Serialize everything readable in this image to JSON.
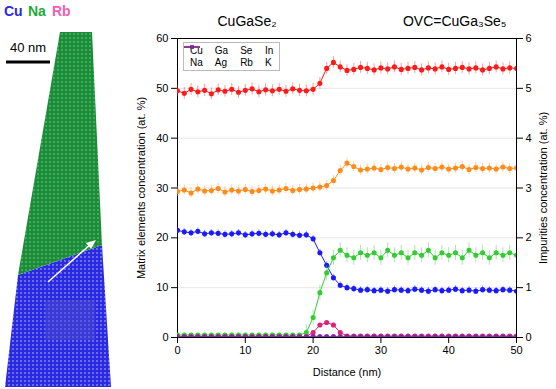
{
  "chart_data": {
    "type": "line",
    "annotations": [
      "CuGaSe₂",
      "OVC=CuGa₃Se₅"
    ],
    "x_label": "Distance (nm)",
    "y_label": "Matrix elements concentration (at. %)",
    "y2_label": "Impurities concentration (at. %)",
    "x": [
      0,
      1,
      2,
      3,
      4,
      5,
      6,
      7,
      8,
      9,
      10,
      11,
      12,
      13,
      14,
      15,
      16,
      17,
      18,
      19,
      20,
      21,
      22,
      23,
      24,
      25,
      26,
      27,
      28,
      29,
      30,
      31,
      32,
      33,
      34,
      35,
      36,
      37,
      38,
      39,
      40,
      41,
      42,
      43,
      44,
      45,
      46,
      47,
      48,
      49,
      50
    ],
    "xlim": [
      0,
      50
    ],
    "xticks": [
      0,
      10,
      20,
      30,
      40,
      50
    ],
    "ylim": [
      0,
      60
    ],
    "yticks": [
      0,
      10,
      20,
      30,
      40,
      50,
      60
    ],
    "y2lim": [
      0,
      6
    ],
    "y2ticks": [
      0,
      1,
      2,
      3,
      4,
      5,
      6
    ],
    "grid": true,
    "legend": "top-left",
    "series": [
      {
        "name": "Cu",
        "color": "#1a1aff",
        "marker": "circle",
        "values": [
          21.5,
          21.2,
          21.0,
          21.3,
          20.8,
          21.0,
          20.9,
          20.7,
          20.8,
          21.0,
          20.6,
          20.8,
          20.9,
          20.7,
          20.8,
          20.6,
          21.0,
          20.7,
          20.5,
          20.6,
          19.8,
          17.0,
          14.5,
          12.0,
          10.5,
          10.0,
          9.8,
          9.5,
          9.6,
          9.4,
          9.5,
          9.3,
          9.6,
          9.5,
          9.4,
          9.7,
          9.5,
          9.3,
          9.6,
          9.4,
          9.5,
          9.7,
          9.4,
          9.5,
          9.3,
          9.6,
          9.5,
          9.4,
          9.6,
          9.5,
          9.3
        ],
        "errors": [
          0.7,
          0.7,
          0.7,
          0.7,
          0.7,
          0.7,
          0.7,
          0.7,
          0.7,
          0.7,
          0.7,
          0.7,
          0.7,
          0.7,
          0.7,
          0.7,
          0.7,
          0.7,
          0.7,
          0.7,
          0.7,
          0.7,
          0.7,
          0.7,
          0.7,
          0.7,
          0.7,
          0.7,
          0.7,
          0.7,
          0.7,
          0.7,
          0.7,
          0.7,
          0.7,
          0.7,
          0.7,
          0.7,
          0.7,
          0.7,
          0.7,
          0.7,
          0.7,
          0.7,
          0.7,
          0.7,
          0.7,
          0.7,
          0.7,
          0.7,
          0.7
        ]
      },
      {
        "name": "Ga",
        "color": "#ff8c1a",
        "marker": "circle",
        "values": [
          29.3,
          29.6,
          29.0,
          29.8,
          29.4,
          29.5,
          29.9,
          29.2,
          29.6,
          29.4,
          29.7,
          29.3,
          29.5,
          29.8,
          29.4,
          29.6,
          29.9,
          29.5,
          29.7,
          29.8,
          30.0,
          30.2,
          30.5,
          31.5,
          33.5,
          35.0,
          34.3,
          33.6,
          33.8,
          34.0,
          33.7,
          34.1,
          33.9,
          34.2,
          33.8,
          34.0,
          33.6,
          34.1,
          33.9,
          34.2,
          33.8,
          34.0,
          34.3,
          33.7,
          34.1,
          33.9,
          34.0,
          33.8,
          34.2,
          33.9,
          34.0
        ],
        "errors": [
          1.0,
          1.0,
          1.0,
          1.0,
          1.0,
          1.0,
          1.0,
          1.0,
          1.0,
          1.0,
          1.0,
          1.0,
          1.0,
          1.0,
          1.0,
          1.0,
          1.0,
          1.0,
          1.0,
          1.0,
          1.0,
          1.0,
          1.0,
          1.0,
          1.0,
          1.0,
          1.0,
          1.0,
          1.0,
          1.0,
          1.0,
          1.0,
          1.0,
          1.0,
          1.0,
          1.0,
          1.0,
          1.0,
          1.0,
          1.0,
          1.0,
          1.0,
          1.0,
          1.0,
          1.0,
          1.0,
          1.0,
          1.0,
          1.0,
          1.0,
          1.0
        ]
      },
      {
        "name": "Se",
        "color": "#ff1a1a",
        "marker": "circle",
        "values": [
          49.5,
          49.0,
          49.8,
          49.3,
          49.6,
          48.9,
          49.7,
          49.4,
          49.8,
          49.2,
          49.6,
          49.9,
          49.3,
          49.7,
          49.5,
          49.8,
          49.4,
          49.9,
          49.6,
          49.5,
          49.8,
          51.0,
          54.0,
          55.2,
          54.3,
          53.6,
          53.8,
          54.2,
          54.0,
          53.7,
          54.1,
          53.9,
          54.3,
          53.8,
          54.0,
          54.2,
          53.7,
          54.1,
          53.9,
          54.3,
          53.8,
          54.0,
          54.2,
          53.9,
          54.1,
          53.7,
          54.0,
          54.3,
          53.9,
          54.1,
          54.0
        ],
        "errors": [
          1.2,
          1.2,
          1.2,
          1.2,
          1.2,
          1.2,
          1.2,
          1.2,
          1.2,
          1.2,
          1.2,
          1.2,
          1.2,
          1.2,
          1.2,
          1.2,
          1.2,
          1.2,
          1.2,
          1.2,
          1.2,
          1.2,
          1.2,
          1.2,
          1.2,
          1.2,
          1.2,
          1.2,
          1.2,
          1.2,
          1.2,
          1.2,
          1.2,
          1.2,
          1.2,
          1.2,
          1.2,
          1.2,
          1.2,
          1.2,
          1.2,
          1.2,
          1.2,
          1.2,
          1.2,
          1.2,
          1.2,
          1.2,
          1.2,
          1.2,
          1.2
        ]
      },
      {
        "name": "In",
        "color": "#ff00ff",
        "marker": "circle",
        "axis": "y2",
        "values": [
          0.02,
          0.02,
          0.02,
          0.02,
          0.02,
          0.02,
          0.02,
          0.02,
          0.02,
          0.02,
          0.02,
          0.02,
          0.02,
          0.02,
          0.02,
          0.02,
          0.02,
          0.02,
          0.02,
          0.02,
          0.02,
          0.02,
          0.02,
          0.02,
          0.02,
          0.02,
          0.02,
          0.02,
          0.02,
          0.02,
          0.02,
          0.02,
          0.02,
          0.02,
          0.02,
          0.02,
          0.02,
          0.02,
          0.02,
          0.02,
          0.02,
          0.02,
          0.02,
          0.02,
          0.02,
          0.02,
          0.02,
          0.02,
          0.02,
          0.02,
          0.02
        ]
      },
      {
        "name": "Na",
        "color": "#33cc33",
        "marker": "circle",
        "axis": "y2",
        "values": [
          0.05,
          0.05,
          0.05,
          0.05,
          0.05,
          0.05,
          0.05,
          0.05,
          0.05,
          0.05,
          0.05,
          0.05,
          0.05,
          0.05,
          0.05,
          0.05,
          0.05,
          0.05,
          0.05,
          0.1,
          0.4,
          0.9,
          1.3,
          1.6,
          1.75,
          1.65,
          1.6,
          1.7,
          1.65,
          1.7,
          1.6,
          1.75,
          1.65,
          1.7,
          1.6,
          1.7,
          1.65,
          1.75,
          1.6,
          1.7,
          1.65,
          1.7,
          1.6,
          1.75,
          1.65,
          1.7,
          1.6,
          1.7,
          1.65,
          1.7,
          1.65
        ],
        "errors": [
          0.03,
          0.03,
          0.03,
          0.03,
          0.03,
          0.03,
          0.03,
          0.03,
          0.03,
          0.03,
          0.03,
          0.03,
          0.03,
          0.03,
          0.03,
          0.03,
          0.03,
          0.03,
          0.03,
          0.15,
          0.15,
          0.15,
          0.15,
          0.15,
          0.15,
          0.15,
          0.15,
          0.15,
          0.15,
          0.15,
          0.15,
          0.15,
          0.15,
          0.15,
          0.15,
          0.15,
          0.15,
          0.15,
          0.15,
          0.15,
          0.15,
          0.15,
          0.15,
          0.15,
          0.15,
          0.15,
          0.15,
          0.15,
          0.15,
          0.15,
          0.15
        ]
      },
      {
        "name": "Ag",
        "color": "#999999",
        "marker": "circle",
        "axis": "y2",
        "values": [
          0.01,
          0.01,
          0.01,
          0.01,
          0.01,
          0.01,
          0.01,
          0.01,
          0.01,
          0.01,
          0.01,
          0.01,
          0.01,
          0.01,
          0.01,
          0.01,
          0.01,
          0.01,
          0.01,
          0.01,
          0.01,
          0.01,
          0.01,
          0.01,
          0.01,
          0.01,
          0.01,
          0.01,
          0.01,
          0.01,
          0.01,
          0.01,
          0.01,
          0.01,
          0.01,
          0.01,
          0.01,
          0.01,
          0.01,
          0.01,
          0.01,
          0.01,
          0.01,
          0.01,
          0.01,
          0.01,
          0.01,
          0.01,
          0.01,
          0.01,
          0.01
        ]
      },
      {
        "name": "Rb",
        "color": "#e0207a",
        "marker": "circle",
        "axis": "y2",
        "values": [
          0.02,
          0.02,
          0.02,
          0.02,
          0.02,
          0.02,
          0.02,
          0.02,
          0.02,
          0.02,
          0.02,
          0.02,
          0.02,
          0.02,
          0.02,
          0.02,
          0.02,
          0.02,
          0.02,
          0.02,
          0.1,
          0.25,
          0.3,
          0.25,
          0.1,
          0.03,
          0.03,
          0.03,
          0.03,
          0.03,
          0.03,
          0.03,
          0.03,
          0.03,
          0.03,
          0.03,
          0.03,
          0.03,
          0.03,
          0.03,
          0.03,
          0.03,
          0.03,
          0.03,
          0.03,
          0.03,
          0.03,
          0.03,
          0.03,
          0.03,
          0.03
        ]
      },
      {
        "name": "K",
        "color": "#7030a0",
        "marker": "circle",
        "axis": "y2",
        "values": [
          0.01,
          0.01,
          0.01,
          0.01,
          0.01,
          0.01,
          0.01,
          0.01,
          0.01,
          0.01,
          0.01,
          0.01,
          0.01,
          0.01,
          0.01,
          0.01,
          0.01,
          0.01,
          0.01,
          0.01,
          0.01,
          0.01,
          0.01,
          0.01,
          0.01,
          0.01,
          0.01,
          0.01,
          0.01,
          0.01,
          0.01,
          0.01,
          0.01,
          0.01,
          0.01,
          0.01,
          0.01,
          0.01,
          0.01,
          0.01,
          0.01,
          0.01,
          0.01,
          0.01,
          0.01,
          0.01,
          0.01,
          0.01,
          0.01,
          0.01,
          0.01
        ]
      }
    ]
  },
  "reconstruction": {
    "element_labels": [
      {
        "text": "Cu",
        "color": "#2a2ae0"
      },
      {
        "text": "Na",
        "color": "#1faa3a"
      },
      {
        "text": "Rb",
        "color": "#f060b0"
      }
    ],
    "scale_bar": "40 nm"
  }
}
